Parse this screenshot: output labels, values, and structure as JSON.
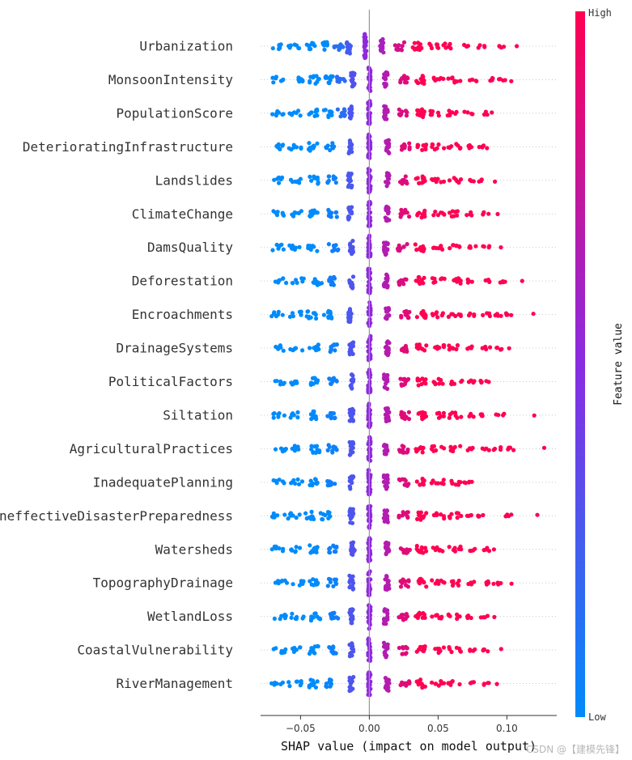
{
  "chart_data": {
    "type": "scatter",
    "subtype": "shap-beeswarm",
    "xlabel": "SHAP value (impact on model output)",
    "xlim": [
      -0.08,
      0.135
    ],
    "xticks": [
      -0.05,
      0.0,
      0.05,
      0.1
    ],
    "xtick_labels": [
      "−0.05",
      "0.00",
      "0.05",
      "0.10"
    ],
    "colorbar": {
      "title": "Feature value",
      "high_label": "High",
      "low_label": "Low",
      "low_color": "#008bfb",
      "mid_color": "#8a2be2",
      "high_color": "#ff0052"
    },
    "series": [
      {
        "name": "Urbanization",
        "clusters": [
          -0.067,
          -0.055,
          -0.043,
          -0.032,
          -0.022,
          -0.015,
          -0.003,
          0.009,
          0.022,
          0.035,
          0.047,
          0.058,
          0.07,
          0.082,
          0.095,
          0.107
        ]
      },
      {
        "name": "MonsoonIntensity",
        "clusters": [
          -0.066,
          -0.053,
          -0.04,
          -0.029,
          -0.02,
          -0.012,
          0.0,
          0.012,
          0.025,
          0.037,
          0.05,
          0.062,
          0.075,
          0.087,
          0.096,
          0.102
        ]
      },
      {
        "name": "PopulationScore",
        "clusters": [
          -0.067,
          -0.054,
          -0.041,
          -0.03,
          -0.021,
          -0.013,
          0.0,
          0.012,
          0.024,
          0.037,
          0.049,
          0.061,
          0.072,
          0.083,
          0.089
        ]
      },
      {
        "name": "DeterioratingInfrastructure",
        "clusters": [
          -0.067,
          -0.054,
          -0.041,
          -0.028,
          -0.014,
          0.0,
          0.013,
          0.026,
          0.038,
          0.05,
          0.062,
          0.074,
          0.082,
          0.088
        ]
      },
      {
        "name": "Landslides",
        "clusters": [
          -0.067,
          -0.054,
          -0.04,
          -0.027,
          -0.014,
          0.0,
          0.013,
          0.025,
          0.037,
          0.05,
          0.062,
          0.073,
          0.081,
          0.092
        ]
      },
      {
        "name": "ClimateChange",
        "clusters": [
          -0.065,
          -0.054,
          -0.041,
          -0.027,
          -0.014,
          0.0,
          0.013,
          0.026,
          0.037,
          0.05,
          0.062,
          0.073,
          0.084,
          0.093
        ]
      },
      {
        "name": "DamsQuality",
        "clusters": [
          -0.066,
          -0.054,
          -0.041,
          -0.026,
          -0.013,
          0.0,
          0.012,
          0.024,
          0.037,
          0.05,
          0.063,
          0.075,
          0.085,
          0.094
        ]
      },
      {
        "name": "Deforestation",
        "clusters": [
          -0.065,
          -0.052,
          -0.038,
          -0.026,
          -0.013,
          0.0,
          0.012,
          0.024,
          0.037,
          0.05,
          0.062,
          0.074,
          0.085,
          0.096,
          0.111
        ]
      },
      {
        "name": "Encroachments",
        "clusters": [
          -0.067,
          -0.054,
          -0.042,
          -0.03,
          -0.014,
          0.0,
          0.013,
          0.026,
          0.038,
          0.05,
          0.062,
          0.074,
          0.085,
          0.093,
          0.102,
          0.12
        ]
      },
      {
        "name": "DrainageSystems",
        "clusters": [
          -0.066,
          -0.053,
          -0.04,
          -0.027,
          -0.013,
          0.0,
          0.013,
          0.026,
          0.038,
          0.05,
          0.062,
          0.074,
          0.085,
          0.095,
          0.104
        ]
      },
      {
        "name": "PoliticalFactors",
        "clusters": [
          -0.066,
          -0.053,
          -0.04,
          -0.027,
          -0.013,
          0.0,
          0.012,
          0.025,
          0.038,
          0.05,
          0.063,
          0.075,
          0.083,
          0.089
        ]
      },
      {
        "name": "Siltation",
        "clusters": [
          -0.066,
          -0.053,
          -0.04,
          -0.027,
          -0.013,
          0.0,
          0.013,
          0.026,
          0.038,
          0.05,
          0.062,
          0.074,
          0.084,
          0.095,
          0.117
        ]
      },
      {
        "name": "AgriculturalPractices",
        "clusters": [
          -0.065,
          -0.052,
          -0.039,
          -0.027,
          -0.013,
          0.0,
          0.012,
          0.025,
          0.037,
          0.05,
          0.062,
          0.074,
          0.085,
          0.093,
          0.102,
          0.126
        ]
      },
      {
        "name": "InadequatePlanning",
        "clusters": [
          -0.066,
          -0.053,
          -0.04,
          -0.027,
          -0.013,
          0.0,
          0.012,
          0.025,
          0.038,
          0.05,
          0.062,
          0.072,
          0.076
        ]
      },
      {
        "name": "IneffectiveDisasterPreparedness",
        "clusters": [
          -0.066,
          -0.055,
          -0.043,
          -0.032,
          -0.013,
          0.0,
          0.012,
          0.025,
          0.038,
          0.05,
          0.062,
          0.074,
          0.08,
          0.101,
          0.124
        ]
      },
      {
        "name": "Watersheds",
        "clusters": [
          -0.066,
          -0.053,
          -0.04,
          -0.027,
          -0.012,
          0.0,
          0.013,
          0.026,
          0.038,
          0.05,
          0.062,
          0.074,
          0.085,
          0.093
        ]
      },
      {
        "name": "TopographyDrainage",
        "clusters": [
          -0.064,
          -0.052,
          -0.04,
          -0.027,
          -0.013,
          0.0,
          0.013,
          0.026,
          0.038,
          0.05,
          0.062,
          0.074,
          0.085,
          0.093,
          0.103
        ]
      },
      {
        "name": "WetlandLoss",
        "clusters": [
          -0.065,
          -0.052,
          -0.039,
          -0.026,
          -0.013,
          0.0,
          0.012,
          0.025,
          0.037,
          0.05,
          0.062,
          0.074,
          0.084,
          0.089
        ]
      },
      {
        "name": "CoastalVulnerability",
        "clusters": [
          -0.065,
          -0.053,
          -0.04,
          -0.027,
          -0.013,
          0.0,
          0.012,
          0.025,
          0.037,
          0.05,
          0.062,
          0.074,
          0.085,
          0.094
        ]
      },
      {
        "name": "RiverManagement",
        "clusters": [
          -0.067,
          -0.054,
          -0.041,
          -0.028,
          -0.013,
          0.0,
          0.013,
          0.026,
          0.038,
          0.05,
          0.062,
          0.074,
          0.085,
          0.093
        ]
      }
    ]
  },
  "watermark": "CSDN @【建模先锋】"
}
